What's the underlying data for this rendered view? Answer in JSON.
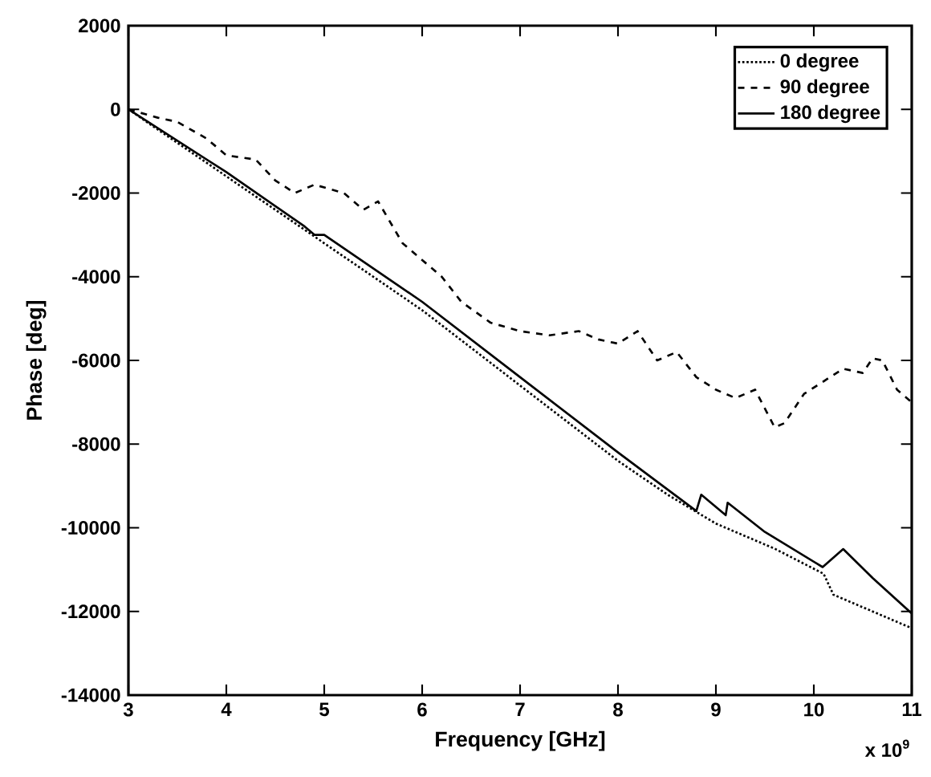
{
  "chart_data": {
    "type": "line",
    "xlabel": "Frequency [GHz]",
    "ylabel": "Phase [deg]",
    "xlim": [
      3,
      11
    ],
    "ylim": [
      -14000,
      2000
    ],
    "xticks": [
      3,
      4,
      5,
      6,
      7,
      8,
      9,
      10,
      11
    ],
    "yticks": [
      -14000,
      -12000,
      -10000,
      -8000,
      -6000,
      -4000,
      -2000,
      0,
      2000
    ],
    "legend": "top right",
    "grid": false,
    "marker": "none",
    "annotations": [
      "x 10$^{9}$"
    ],
    "series": [
      {
        "name": "0 degree",
        "color": "#000000",
        "line_style": "dotted",
        "x": [
          3,
          3.5,
          4,
          4.5,
          5,
          5.5,
          6,
          6.5,
          7,
          7.5,
          8,
          8.5,
          9,
          9.6,
          10.1,
          10.2,
          10.5,
          10.8,
          11
        ],
        "values": [
          0,
          -800,
          -1600,
          -2400,
          -3200,
          -4000,
          -4800,
          -5700,
          -6600,
          -7500,
          -8400,
          -9200,
          -9900,
          -10500,
          -11100,
          -11600,
          -11900,
          -12200,
          -12400
        ]
      },
      {
        "name": "90 degree",
        "color": "#000000",
        "line_style": "dashed",
        "x": [
          3,
          3.3,
          3.5,
          3.8,
          4,
          4.3,
          4.5,
          4.7,
          4.9,
          5.2,
          5.4,
          5.55,
          5.8,
          6.0,
          6.2,
          6.4,
          6.7,
          7.0,
          7.3,
          7.6,
          7.8,
          8.0,
          8.2,
          8.4,
          8.6,
          8.8,
          9.0,
          9.2,
          9.4,
          9.6,
          9.7,
          9.9,
          10.1,
          10.3,
          10.5,
          10.6,
          10.7,
          10.85,
          11
        ],
        "values": [
          0,
          -200,
          -300,
          -700,
          -1100,
          -1200,
          -1700,
          -2000,
          -1800,
          -2000,
          -2400,
          -2200,
          -3200,
          -3600,
          -4000,
          -4600,
          -5100,
          -5300,
          -5400,
          -5300,
          -5500,
          -5600,
          -5300,
          -6000,
          -5800,
          -6400,
          -6700,
          -6900,
          -6700,
          -7600,
          -7500,
          -6800,
          -6500,
          -6200,
          -6300,
          -5950,
          -6000,
          -6700,
          -7000
        ]
      },
      {
        "name": "180 degree",
        "color": "#000000",
        "line_style": "solid",
        "x": [
          3,
          4,
          4.8,
          4.9,
          5,
          6,
          7,
          8,
          8.8,
          8.85,
          9.1,
          9.12,
          9.5,
          10.09,
          10.3,
          10.6,
          11
        ],
        "values": [
          0,
          -1500,
          -2800,
          -3000,
          -3000,
          -4600,
          -6400,
          -8200,
          -9600,
          -9210,
          -9700,
          -9400,
          -10100,
          -10940,
          -10510,
          -11200,
          -12050
        ]
      }
    ]
  }
}
